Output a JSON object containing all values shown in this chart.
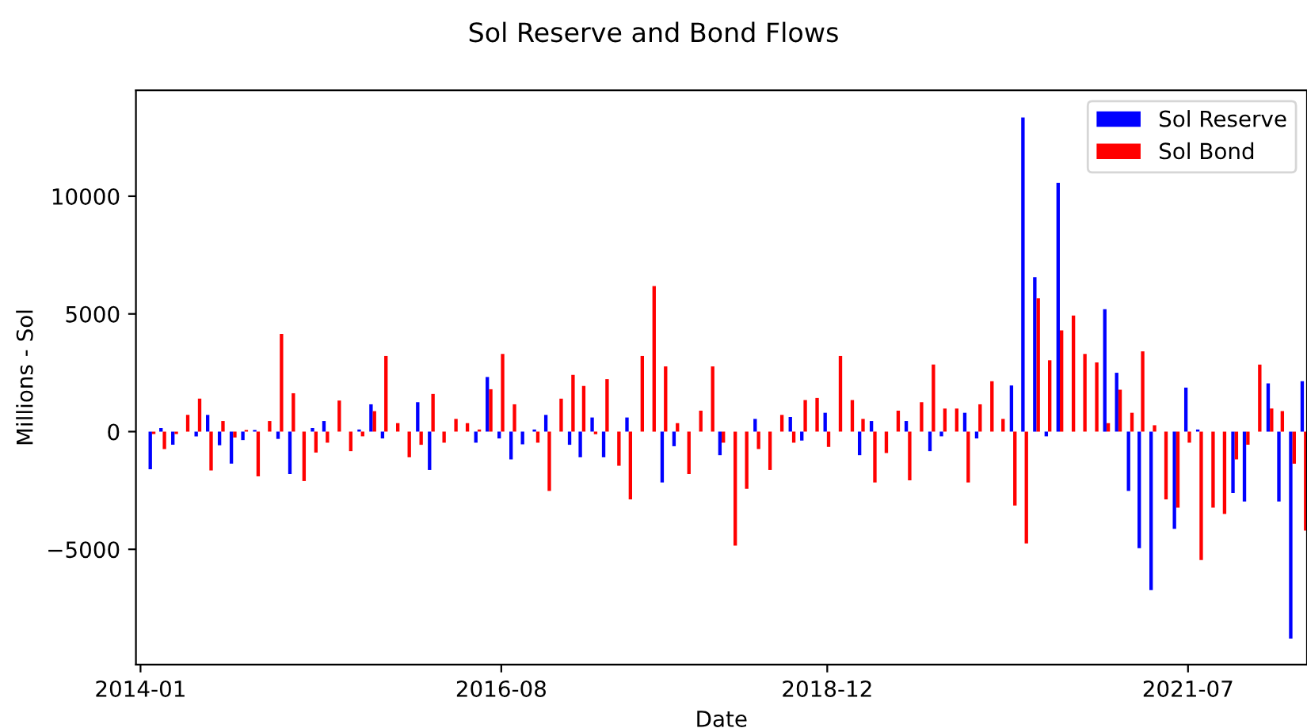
{
  "chart_data": {
    "type": "bar",
    "title": "Sol Reserve and Bond Flows",
    "xlabel": "Date",
    "ylabel": "Millions - Sol",
    "x": [
      "2014-01-31",
      "2014-02-28",
      "2014-03-31",
      "2014-04-30",
      "2014-05-31",
      "2014-06-30",
      "2014-07-31",
      "2014-08-31",
      "2014-09-30",
      "2014-10-31",
      "2014-11-30",
      "2014-12-31",
      "2015-01-31",
      "2015-02-28",
      "2015-03-31",
      "2015-04-30",
      "2015-05-31",
      "2015-06-30",
      "2015-07-31",
      "2015-08-31",
      "2015-09-30",
      "2015-10-31",
      "2015-11-30",
      "2015-12-31",
      "2016-01-31",
      "2016-02-29",
      "2016-03-31",
      "2016-04-30",
      "2016-05-31",
      "2016-06-30",
      "2016-07-31",
      "2016-08-31",
      "2016-09-30",
      "2016-10-31",
      "2016-11-30",
      "2016-12-31",
      "2017-01-31",
      "2017-02-28",
      "2017-03-31",
      "2017-04-30",
      "2017-05-31",
      "2017-06-30",
      "2017-07-31",
      "2017-08-31",
      "2017-09-30",
      "2017-10-31",
      "2017-11-30",
      "2017-12-31",
      "2018-01-31",
      "2018-02-28",
      "2018-03-31",
      "2018-04-30",
      "2018-05-31",
      "2018-06-30",
      "2018-07-31",
      "2018-08-31",
      "2018-09-30",
      "2018-10-31",
      "2018-11-30",
      "2018-12-31",
      "2019-01-31",
      "2019-02-28",
      "2019-03-31",
      "2019-04-30",
      "2019-05-31",
      "2019-06-30",
      "2019-07-31",
      "2019-08-31",
      "2019-09-30",
      "2019-10-31",
      "2019-11-30",
      "2019-12-31",
      "2020-01-31",
      "2020-02-29",
      "2020-03-31",
      "2020-04-30",
      "2020-05-31",
      "2020-06-30",
      "2020-07-31",
      "2020-08-31",
      "2020-09-30",
      "2020-10-31",
      "2020-11-30",
      "2020-12-31",
      "2021-01-31",
      "2021-02-28",
      "2021-03-31",
      "2021-04-30",
      "2021-05-31",
      "2021-06-30",
      "2021-07-31",
      "2021-08-31",
      "2021-09-30",
      "2021-10-31",
      "2021-11-30",
      "2021-12-31",
      "2022-01-31",
      "2022-02-28",
      "2022-03-31",
      "2022-04-30"
    ],
    "series": [
      {
        "name": "Sol Reserve",
        "color": "#0000ff",
        "values": [
          -1600,
          150,
          -560,
          null,
          -200,
          710,
          -580,
          -1360,
          -360,
          70,
          null,
          -310,
          -1800,
          null,
          150,
          450,
          null,
          null,
          90,
          1160,
          -290,
          null,
          null,
          1250,
          -1630,
          null,
          null,
          null,
          -470,
          2320,
          -290,
          -1180,
          -540,
          90,
          710,
          null,
          -560,
          -1090,
          600,
          -1090,
          null,
          600,
          null,
          null,
          -2160,
          -620,
          null,
          null,
          null,
          -1000,
          null,
          null,
          540,
          null,
          null,
          620,
          -380,
          null,
          800,
          null,
          null,
          -1000,
          450,
          null,
          null,
          450,
          null,
          -830,
          -200,
          null,
          800,
          -290,
          null,
          null,
          1960,
          13340,
          6560,
          -200,
          10570,
          null,
          null,
          null,
          5200,
          2500,
          -2520,
          -4950,
          -6730,
          null,
          -4130,
          1870,
          90,
          null,
          null,
          -2610,
          -2970,
          null,
          2050,
          -2970,
          -8790,
          2140
        ]
      },
      {
        "name": "Sol Bond",
        "color": "#ff0000",
        "values": [
          -100,
          -740,
          -100,
          710,
          1400,
          -1650,
          450,
          -250,
          70,
          -1900,
          450,
          4150,
          1630,
          -2100,
          -890,
          -470,
          1320,
          -830,
          -200,
          870,
          3210,
          360,
          -1090,
          -560,
          1600,
          -470,
          540,
          360,
          90,
          1800,
          3300,
          1160,
          null,
          -470,
          -2520,
          1400,
          2410,
          1940,
          -110,
          2230,
          -1450,
          -2880,
          3210,
          6180,
          2770,
          360,
          -1800,
          890,
          2770,
          -470,
          -4840,
          -2430,
          -740,
          -1630,
          710,
          -470,
          1340,
          1430,
          -650,
          3210,
          1340,
          540,
          -2160,
          -910,
          890,
          -2070,
          1250,
          2850,
          980,
          980,
          -2160,
          1160,
          2140,
          540,
          -3140,
          -4750,
          5660,
          3030,
          4300,
          4930,
          3300,
          2940,
          360,
          1780,
          800,
          3410,
          270,
          -2880,
          -3230,
          -470,
          -5460,
          -3230,
          -3500,
          -1180,
          -560,
          2850,
          980,
          870,
          -1360,
          -4200
        ]
      }
    ],
    "xlim": [
      "2013-12-20",
      "2022-05-08"
    ],
    "xticks": [
      "2014-01",
      "2016-08",
      "2018-12",
      "2021-07"
    ],
    "ylim": [
      -9900,
      14500
    ],
    "yticks": [
      {
        "value": -5000,
        "label": "−5000"
      },
      0,
      5000,
      10000
    ],
    "grid": false,
    "legend": "top right"
  }
}
